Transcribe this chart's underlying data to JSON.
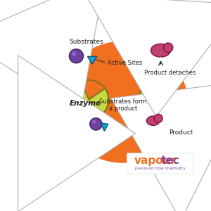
{
  "bg_orange": "#F07020",
  "enzyme_color": "#C8D840",
  "enzyme_edge": "#707020",
  "substrate_purple": "#7040A0",
  "substrate_blue": "#20A0D0",
  "product_pink": "#C04070",
  "product_edge": "#801040",
  "arrow_fill": "#FFFFFF",
  "arrow_edge": "#B0B0B0",
  "text_dark": "#202020",
  "vapourtec_orange": "#F07020",
  "vapourtec_purple": "#8040A0",
  "logo_sub": "precision flow chemistry",
  "labels": {
    "substrates": "Substrates",
    "active_sites": "Active Sites",
    "enzyme": "Enzyme",
    "substrates_form": "Substrates form\na product",
    "product": "Product",
    "product_detaches": "Product detaches"
  },
  "figsize": [
    3.0,
    3.0
  ],
  "dpi": 100
}
